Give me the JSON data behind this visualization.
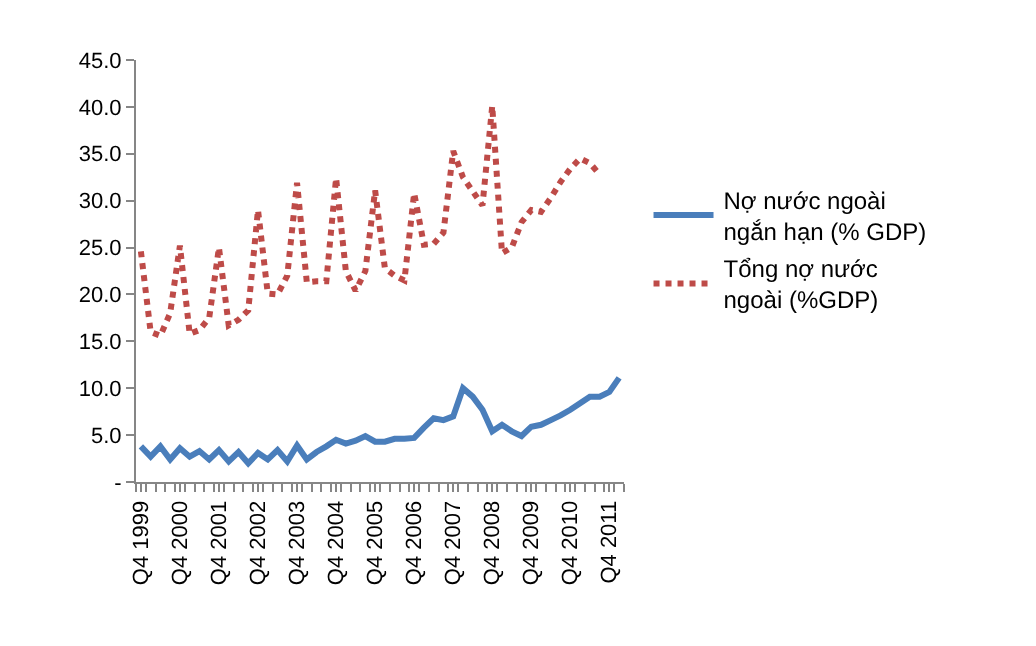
{
  "chart_data": {
    "type": "line",
    "categories": [
      "Q4 1999",
      null,
      null,
      null,
      "Q4 2000",
      null,
      null,
      null,
      "Q4 2001",
      null,
      null,
      null,
      "Q4 2002",
      null,
      null,
      null,
      "Q4 2003",
      null,
      null,
      null,
      "Q4 2004",
      null,
      null,
      null,
      "Q4 2005",
      null,
      null,
      null,
      "Q4 2006",
      null,
      null,
      null,
      "Q4 2007",
      null,
      null,
      null,
      "Q4 2008",
      null,
      null,
      null,
      "Q4 2009",
      null,
      null,
      null,
      "Q4 2010",
      null,
      null,
      null,
      "Q4 2011",
      null
    ],
    "series": [
      {
        "name": "Nợ nước ngoài ngắn hạn (% GDP)",
        "color": "#4a7ebb",
        "line_style": "solid",
        "values": [
          3.8,
          2.7,
          3.8,
          2.4,
          3.6,
          2.7,
          3.3,
          2.4,
          3.4,
          2.2,
          3.2,
          2.0,
          3.1,
          2.4,
          3.4,
          2.2,
          3.9,
          2.4,
          3.2,
          3.8,
          4.5,
          4.1,
          4.4,
          4.9,
          4.3,
          4.3,
          4.6,
          4.6,
          4.7,
          5.8,
          6.8,
          6.6,
          7.0,
          10.0,
          9.1,
          7.7,
          5.4,
          6.1,
          5.4,
          4.9,
          5.9,
          6.1,
          6.6,
          7.1,
          7.7,
          8.4,
          9.1,
          9.1,
          9.6,
          11.1
        ]
      },
      {
        "name": "Tổng nợ nước ngoài (%GDP)",
        "color": "#be4b48",
        "line_style": "dotted",
        "values": [
          24.6,
          16.0,
          15.6,
          18.0,
          25.2,
          15.8,
          16.2,
          17.5,
          25.0,
          16.7,
          17.3,
          18.3,
          29.0,
          20.1,
          20.0,
          22.0,
          31.9,
          21.3,
          21.4,
          21.4,
          32.4,
          22.5,
          20.4,
          22.5,
          31.1,
          22.8,
          22.0,
          21.5,
          30.8,
          25.3,
          25.4,
          26.6,
          35.3,
          32.5,
          31.0,
          29.5,
          40.1,
          24.4,
          25.0,
          27.7,
          29.0,
          28.8,
          30.3,
          32.0,
          33.4,
          34.5,
          34.0,
          32.8,
          null,
          null
        ]
      }
    ],
    "ylim": [
      0,
      45
    ],
    "yticks": [
      {
        "value": 0,
        "label": "-"
      },
      {
        "value": 5,
        "label": "5.0"
      },
      {
        "value": 10,
        "label": "10.0"
      },
      {
        "value": 15,
        "label": "15.0"
      },
      {
        "value": 20,
        "label": "20.0"
      },
      {
        "value": 25,
        "label": "25.0"
      },
      {
        "value": 30,
        "label": "30.0"
      },
      {
        "value": 35,
        "label": "35.0"
      },
      {
        "value": 40,
        "label": "40.0"
      },
      {
        "value": 45,
        "label": "45.0"
      }
    ],
    "legend": "right"
  }
}
